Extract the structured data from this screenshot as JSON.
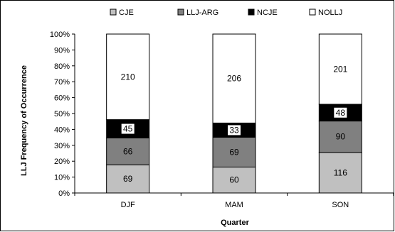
{
  "chart_data": {
    "type": "bar",
    "stacked": "percent",
    "categories": [
      "DJF",
      "MAM",
      "SON"
    ],
    "series": [
      {
        "name": "CJE",
        "values": [
          69,
          60,
          116
        ],
        "color": "#c0c0c0"
      },
      {
        "name": "LLJ-ARG",
        "values": [
          66,
          69,
          90
        ],
        "color": "#808080"
      },
      {
        "name": "NCJE",
        "values": [
          45,
          33,
          48
        ],
        "color": "#000000"
      },
      {
        "name": "NOLLJ",
        "values": [
          210,
          206,
          201
        ],
        "color": "#ffffff"
      }
    ],
    "yticks": [
      "0%",
      "10%",
      "20%",
      "30%",
      "40%",
      "50%",
      "60%",
      "70%",
      "80%",
      "90%",
      "100%"
    ],
    "ylim": [
      0,
      100
    ],
    "xlabel": "Quarter",
    "ylabel": "LLJ Frequency of Occurrence",
    "legend_position": "top",
    "grid": false
  }
}
